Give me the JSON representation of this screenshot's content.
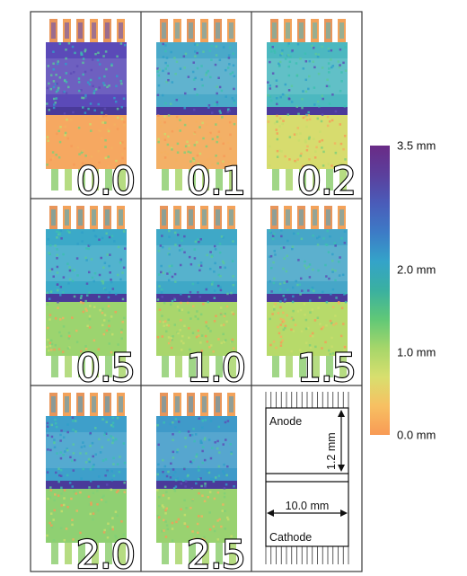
{
  "panels": [
    {
      "label": "0.0",
      "top_band": "#5b4ab8",
      "bottom_band": "#f6a861"
    },
    {
      "label": "0.1",
      "top_band": "#4aa9c9",
      "bottom_band": "#f3b066"
    },
    {
      "label": "0.2",
      "top_band": "#4cb8c0",
      "bottom_band": "#d7dc6e"
    },
    {
      "label": "0.5",
      "top_band": "#3ba9c8",
      "bottom_band": "#9cd46f"
    },
    {
      "label": "1.0",
      "top_band": "#3fa8c7",
      "bottom_band": "#a9d66c"
    },
    {
      "label": "1.5",
      "top_band": "#46a6c8",
      "bottom_band": "#b7da6a"
    },
    {
      "label": "2.0",
      "top_band": "#3e9fca",
      "bottom_band": "#8fd072"
    },
    {
      "label": "2.5",
      "top_band": "#3f9ac9",
      "bottom_band": "#99d270"
    }
  ],
  "colorbar": {
    "ticks": [
      "3.5 mm",
      "2.0 mm",
      "1.0 mm",
      "0.0 mm"
    ],
    "tick_values": [
      3.5,
      2.0,
      1.0,
      0.0
    ],
    "range": [
      0.0,
      3.5
    ],
    "colors": [
      "#f89a55",
      "#f7c062",
      "#d8df6e",
      "#a6d66a",
      "#60c877",
      "#3ab0a0",
      "#34a3c9",
      "#3d7bc6",
      "#4a5cb9",
      "#5b3f9c",
      "#6a2b86"
    ]
  },
  "schematic": {
    "anode_label": "Anode",
    "cathode_label": "Cathode",
    "height_label": "1.2 mm",
    "width_label": "10.0 mm"
  }
}
